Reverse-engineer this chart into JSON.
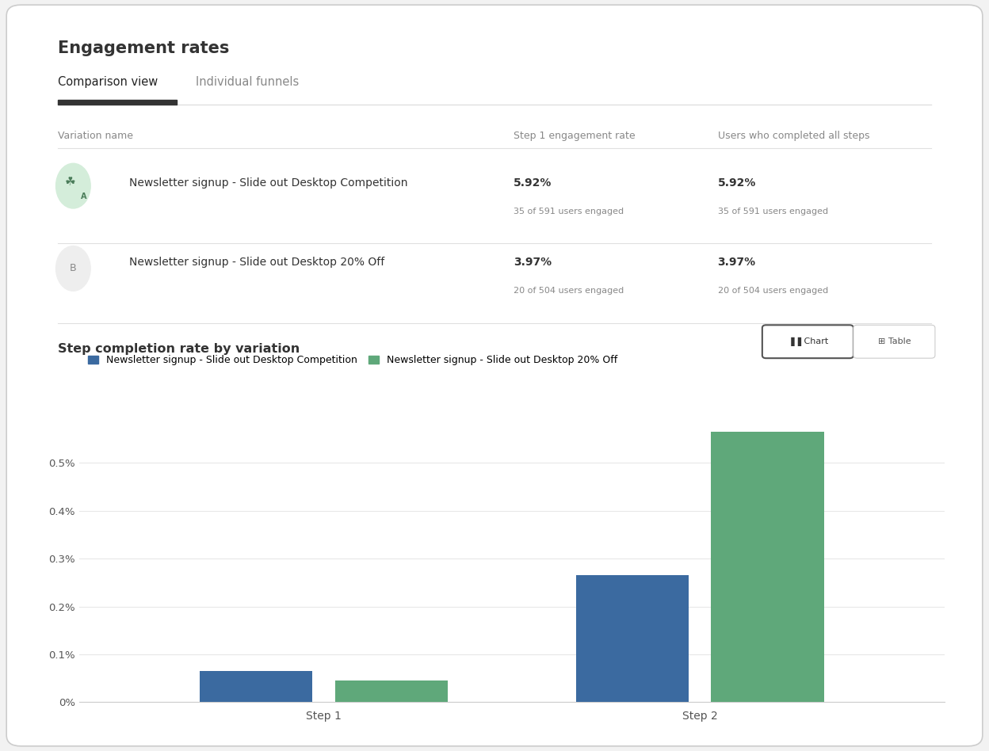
{
  "title": "Engagement rates",
  "tab_active": "Comparison view",
  "tab_inactive": "Individual funnels",
  "table_headers": [
    "Variation name",
    "Step 1 engagement rate",
    "Users who completed all steps"
  ],
  "variations": [
    {
      "label": "A",
      "name": "Newsletter signup - Slide out Desktop Competition",
      "step1_pct": "5.92%",
      "step1_detail": "35 of 591 users engaged",
      "completed_pct": "5.92%",
      "completed_detail": "35 of 591 users engaged",
      "badge_bg": "#d4edda",
      "is_winner": true
    },
    {
      "label": "B",
      "name": "Newsletter signup - Slide out Desktop 20% Off",
      "step1_pct": "3.97%",
      "step1_detail": "20 of 504 users engaged",
      "completed_pct": "3.97%",
      "completed_detail": "20 of 504 users engaged",
      "badge_bg": "#eeeeee",
      "is_winner": false
    }
  ],
  "chart_title": "Step completion rate by variation",
  "chart_legend": [
    {
      "label": "Newsletter signup - Slide out Desktop Competition",
      "color": "#3b6aa0"
    },
    {
      "label": "Newsletter signup - Slide out Desktop 20% Off",
      "color": "#5fa87a"
    }
  ],
  "steps": [
    "Step 1",
    "Step 2"
  ],
  "bar_data_A": [
    0.00065,
    0.00265
  ],
  "bar_data_B": [
    0.00045,
    0.00565
  ],
  "bar_colors": [
    "#3b6aa0",
    "#5fa87a"
  ],
  "y_ticks": [
    0.0,
    0.001,
    0.002,
    0.003,
    0.004,
    0.005
  ],
  "y_tick_labels": [
    "0%",
    "0.1%",
    "0.2%",
    "0.3%",
    "0.4%",
    "0.5%"
  ],
  "background_color": "#ffffff",
  "text_color": "#333333",
  "light_text": "#888888",
  "border_color": "#e0e0e0"
}
